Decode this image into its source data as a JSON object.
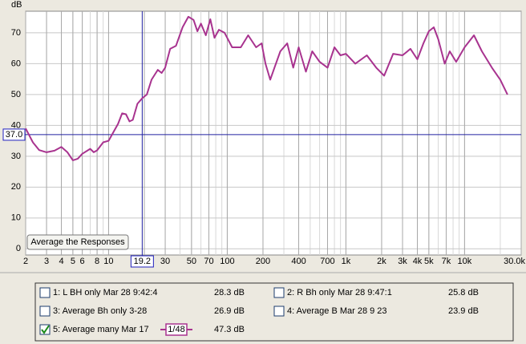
{
  "chart_data": {
    "type": "line",
    "y_unit": "dB",
    "xscale": "log",
    "grid": true,
    "xlim": [
      2,
      30000
    ],
    "ylim": [
      -2,
      77
    ],
    "xticks": [
      2,
      3,
      4,
      5,
      6,
      8,
      10,
      20,
      30,
      50,
      70,
      100,
      200,
      400,
      700,
      {
        "value": 1000,
        "label": "1k"
      },
      {
        "value": 2000,
        "label": "2k"
      },
      {
        "value": 3000,
        "label": "3k"
      },
      {
        "value": 4000,
        "label": "4k"
      },
      {
        "value": 5000,
        "label": "5k"
      },
      {
        "value": 7000,
        "label": "7k"
      },
      {
        "value": 10000,
        "label": "10k"
      },
      {
        "value": 30000,
        "label": "30.0k"
      }
    ],
    "yticks": [
      0,
      10,
      20,
      30,
      40,
      50,
      60,
      70
    ],
    "cursor": {
      "x": 19.2,
      "y": {
        "value": 37,
        "label": "37.0"
      }
    },
    "x": [
      2,
      2.3,
      2.6,
      3,
      3.5,
      4,
      4.5,
      5,
      5.5,
      6,
      7,
      7.5,
      8,
      9,
      10,
      11,
      12,
      13,
      14,
      15,
      16,
      17.5,
      19.2,
      21,
      23,
      26,
      28,
      30,
      33,
      37,
      42,
      47,
      52,
      56,
      60,
      66,
      72,
      78,
      85,
      95,
      110,
      130,
      150,
      175,
      195,
      210,
      230,
      250,
      280,
      320,
      360,
      400,
      460,
      520,
      600,
      700,
      800,
      900,
      1000,
      1200,
      1500,
      1800,
      2100,
      2500,
      3000,
      3500,
      4000,
      4500,
      5000,
      5500,
      6000,
      6800,
      7500,
      8500,
      10000,
      12000,
      14000,
      17000,
      20000,
      23000
    ],
    "series": [
      {
        "color": "#a8338f",
        "values": [
          39,
          34.5,
          32,
          31.3,
          31.8,
          33,
          31.3,
          28.7,
          29.2,
          30.8,
          32.4,
          31.3,
          31.9,
          34.5,
          35,
          37.9,
          40.5,
          43.9,
          43.6,
          41.3,
          41.8,
          47,
          48.8,
          50,
          54.8,
          58,
          57,
          58.7,
          64.8,
          65.8,
          71.8,
          75.2,
          74.2,
          70.5,
          73,
          69.2,
          74.4,
          68.4,
          71,
          70,
          65.3,
          65.3,
          69.2,
          65.3,
          66.6,
          60,
          54.8,
          58.7,
          64,
          66.6,
          58.7,
          65.3,
          57.4,
          64,
          60.6,
          58.7,
          65.3,
          62.7,
          63.2,
          60,
          62.7,
          58.7,
          56.1,
          63.2,
          62.7,
          64.8,
          61.4,
          66.6,
          70.5,
          71.8,
          67.9,
          60,
          64,
          60.6,
          65.3,
          69.2,
          64,
          58.7,
          54.8,
          50
        ]
      }
    ]
  },
  "button": "Average the Responses",
  "legend_panel": [
    {
      "label": "1: L BH only Mar 28 9:42:4",
      "level": "28.3 dB",
      "checked": false,
      "color": "#8b1c1c"
    },
    {
      "label": "2: R Bh only Mar 28 9:47:1",
      "level": "25.8 dB",
      "checked": false,
      "color": "#8b1c7a"
    },
    {
      "label": "3: Average Bh only 3-28",
      "level": "26.9 dB",
      "checked": false,
      "color": "#7d2a8b"
    },
    {
      "label": "4: Average B Mar 28 9 23",
      "level": "23.9 dB",
      "checked": false,
      "color": "#1e6b1e"
    },
    {
      "label": "5: Average many Mar 17",
      "level": "47.3 dB",
      "checked": true,
      "color": "#a8338f",
      "smoothing": "1/48"
    }
  ]
}
